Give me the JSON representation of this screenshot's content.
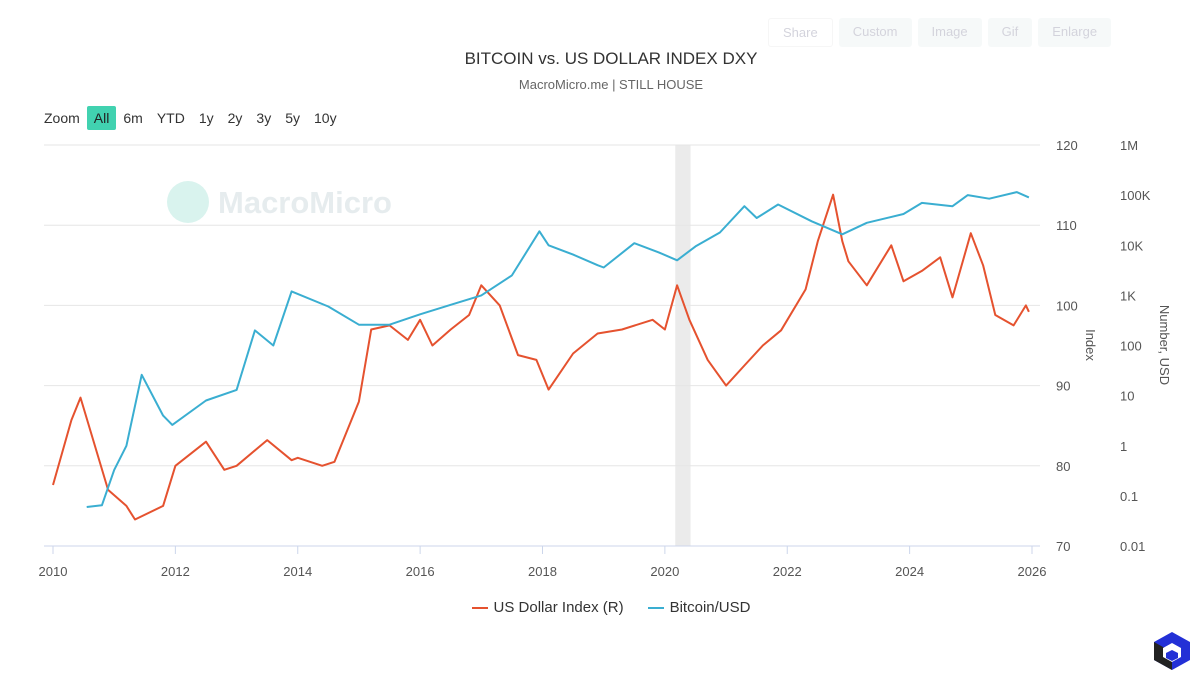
{
  "toolbar": {
    "buttons": [
      "Share",
      "Custom",
      "Image",
      "Gif",
      "Enlarge"
    ]
  },
  "zoom": {
    "label": "Zoom",
    "options": [
      "All",
      "6m",
      "YTD",
      "1y",
      "2y",
      "3y",
      "5y",
      "10y"
    ],
    "active": "All"
  },
  "colors": {
    "dxy": "#e5522f",
    "btc": "#3aaed1",
    "accent": "#41d2b0",
    "recession": "#ebebeb"
  },
  "chart_data": {
    "type": "line",
    "title": "BITCOIN vs. US DOLLAR INDEX DXY",
    "subtitle": "MacroMicro.me | STILL HOUSE",
    "watermark": "MacroMicro",
    "x_ticks": [
      "2010",
      "2012",
      "2014",
      "2016",
      "2018",
      "2020",
      "2022",
      "2024",
      "2026"
    ],
    "xlim": [
      2010,
      2026
    ],
    "y_left": {
      "label": "Index",
      "ticks": [
        "70",
        "80",
        "90",
        "100",
        "110",
        "120"
      ],
      "lim": [
        70,
        120
      ]
    },
    "y_right": {
      "label": "Number, USD",
      "scale": "log",
      "ticks": [
        "0.01",
        "0.1",
        "1",
        "10",
        "100",
        "1K",
        "10K",
        "100K",
        "1M"
      ],
      "lim": [
        0.01,
        1000000
      ]
    },
    "grid": true,
    "legend_position": "bottom",
    "shaded_periods": [
      [
        2020.17,
        2020.42
      ]
    ],
    "series": [
      {
        "name": "US Dollar Index (R)",
        "axis": "left",
        "points": [
          [
            2010.0,
            77.6
          ],
          [
            2010.3,
            85.7
          ],
          [
            2010.45,
            88.5
          ],
          [
            2010.9,
            77
          ],
          [
            2011.2,
            75
          ],
          [
            2011.34,
            73.3
          ],
          [
            2011.8,
            75
          ],
          [
            2012.0,
            80
          ],
          [
            2012.5,
            83
          ],
          [
            2012.8,
            79.5
          ],
          [
            2013.0,
            80
          ],
          [
            2013.5,
            83.2
          ],
          [
            2013.9,
            80.7
          ],
          [
            2014.0,
            81
          ],
          [
            2014.4,
            80
          ],
          [
            2014.6,
            80.5
          ],
          [
            2015.0,
            88
          ],
          [
            2015.2,
            97
          ],
          [
            2015.5,
            97.5
          ],
          [
            2015.8,
            95.7
          ],
          [
            2016.0,
            98.2
          ],
          [
            2016.2,
            95
          ],
          [
            2016.5,
            97
          ],
          [
            2016.8,
            98.8
          ],
          [
            2017.0,
            102.5
          ],
          [
            2017.3,
            100
          ],
          [
            2017.6,
            93.8
          ],
          [
            2017.9,
            93.2
          ],
          [
            2018.1,
            89.5
          ],
          [
            2018.5,
            94
          ],
          [
            2018.9,
            96.5
          ],
          [
            2019.3,
            97
          ],
          [
            2019.8,
            98.2
          ],
          [
            2020.0,
            97
          ],
          [
            2020.2,
            102.5
          ],
          [
            2020.4,
            98.2
          ],
          [
            2020.7,
            93.2
          ],
          [
            2021.0,
            90
          ],
          [
            2021.3,
            92.5
          ],
          [
            2021.6,
            95
          ],
          [
            2021.9,
            96.9
          ],
          [
            2022.3,
            102
          ],
          [
            2022.5,
            108
          ],
          [
            2022.75,
            113.8
          ],
          [
            2022.9,
            108
          ],
          [
            2023.0,
            105.5
          ],
          [
            2023.3,
            102.5
          ],
          [
            2023.7,
            107.5
          ],
          [
            2023.9,
            103
          ],
          [
            2024.2,
            104.3
          ],
          [
            2024.5,
            106
          ],
          [
            2024.7,
            101
          ],
          [
            2025.0,
            109
          ],
          [
            2025.2,
            105
          ],
          [
            2025.4,
            98.8
          ],
          [
            2025.7,
            97.5
          ],
          [
            2025.9,
            100
          ],
          [
            2025.95,
            99.2
          ]
        ]
      },
      {
        "name": "Bitcoin/USD",
        "axis": "right",
        "points": [
          [
            2010.55,
            0.06
          ],
          [
            2010.8,
            0.065
          ],
          [
            2011.0,
            0.33
          ],
          [
            2011.2,
            1
          ],
          [
            2011.45,
            26
          ],
          [
            2011.8,
            4
          ],
          [
            2011.95,
            2.6
          ],
          [
            2012.5,
            8
          ],
          [
            2013.0,
            13
          ],
          [
            2013.3,
            200
          ],
          [
            2013.6,
            100
          ],
          [
            2013.9,
            1200
          ],
          [
            2014.5,
            600
          ],
          [
            2015.0,
            260
          ],
          [
            2015.5,
            260
          ],
          [
            2016.0,
            420
          ],
          [
            2016.5,
            650
          ],
          [
            2017.0,
            1000
          ],
          [
            2017.5,
            2500
          ],
          [
            2017.95,
            19000
          ],
          [
            2018.1,
            10000
          ],
          [
            2018.5,
            6500
          ],
          [
            2018.9,
            4000
          ],
          [
            2019.0,
            3600
          ],
          [
            2019.5,
            11000
          ],
          [
            2019.9,
            7200
          ],
          [
            2020.2,
            5000
          ],
          [
            2020.5,
            9500
          ],
          [
            2020.9,
            18000
          ],
          [
            2021.3,
            60000
          ],
          [
            2021.5,
            35000
          ],
          [
            2021.85,
            65000
          ],
          [
            2022.4,
            30000
          ],
          [
            2022.9,
            16500
          ],
          [
            2023.3,
            28000
          ],
          [
            2023.9,
            42000
          ],
          [
            2024.2,
            70000
          ],
          [
            2024.7,
            60000
          ],
          [
            2024.95,
            100000
          ],
          [
            2025.3,
            85000
          ],
          [
            2025.75,
            115000
          ],
          [
            2025.95,
            90000
          ]
        ]
      }
    ]
  }
}
